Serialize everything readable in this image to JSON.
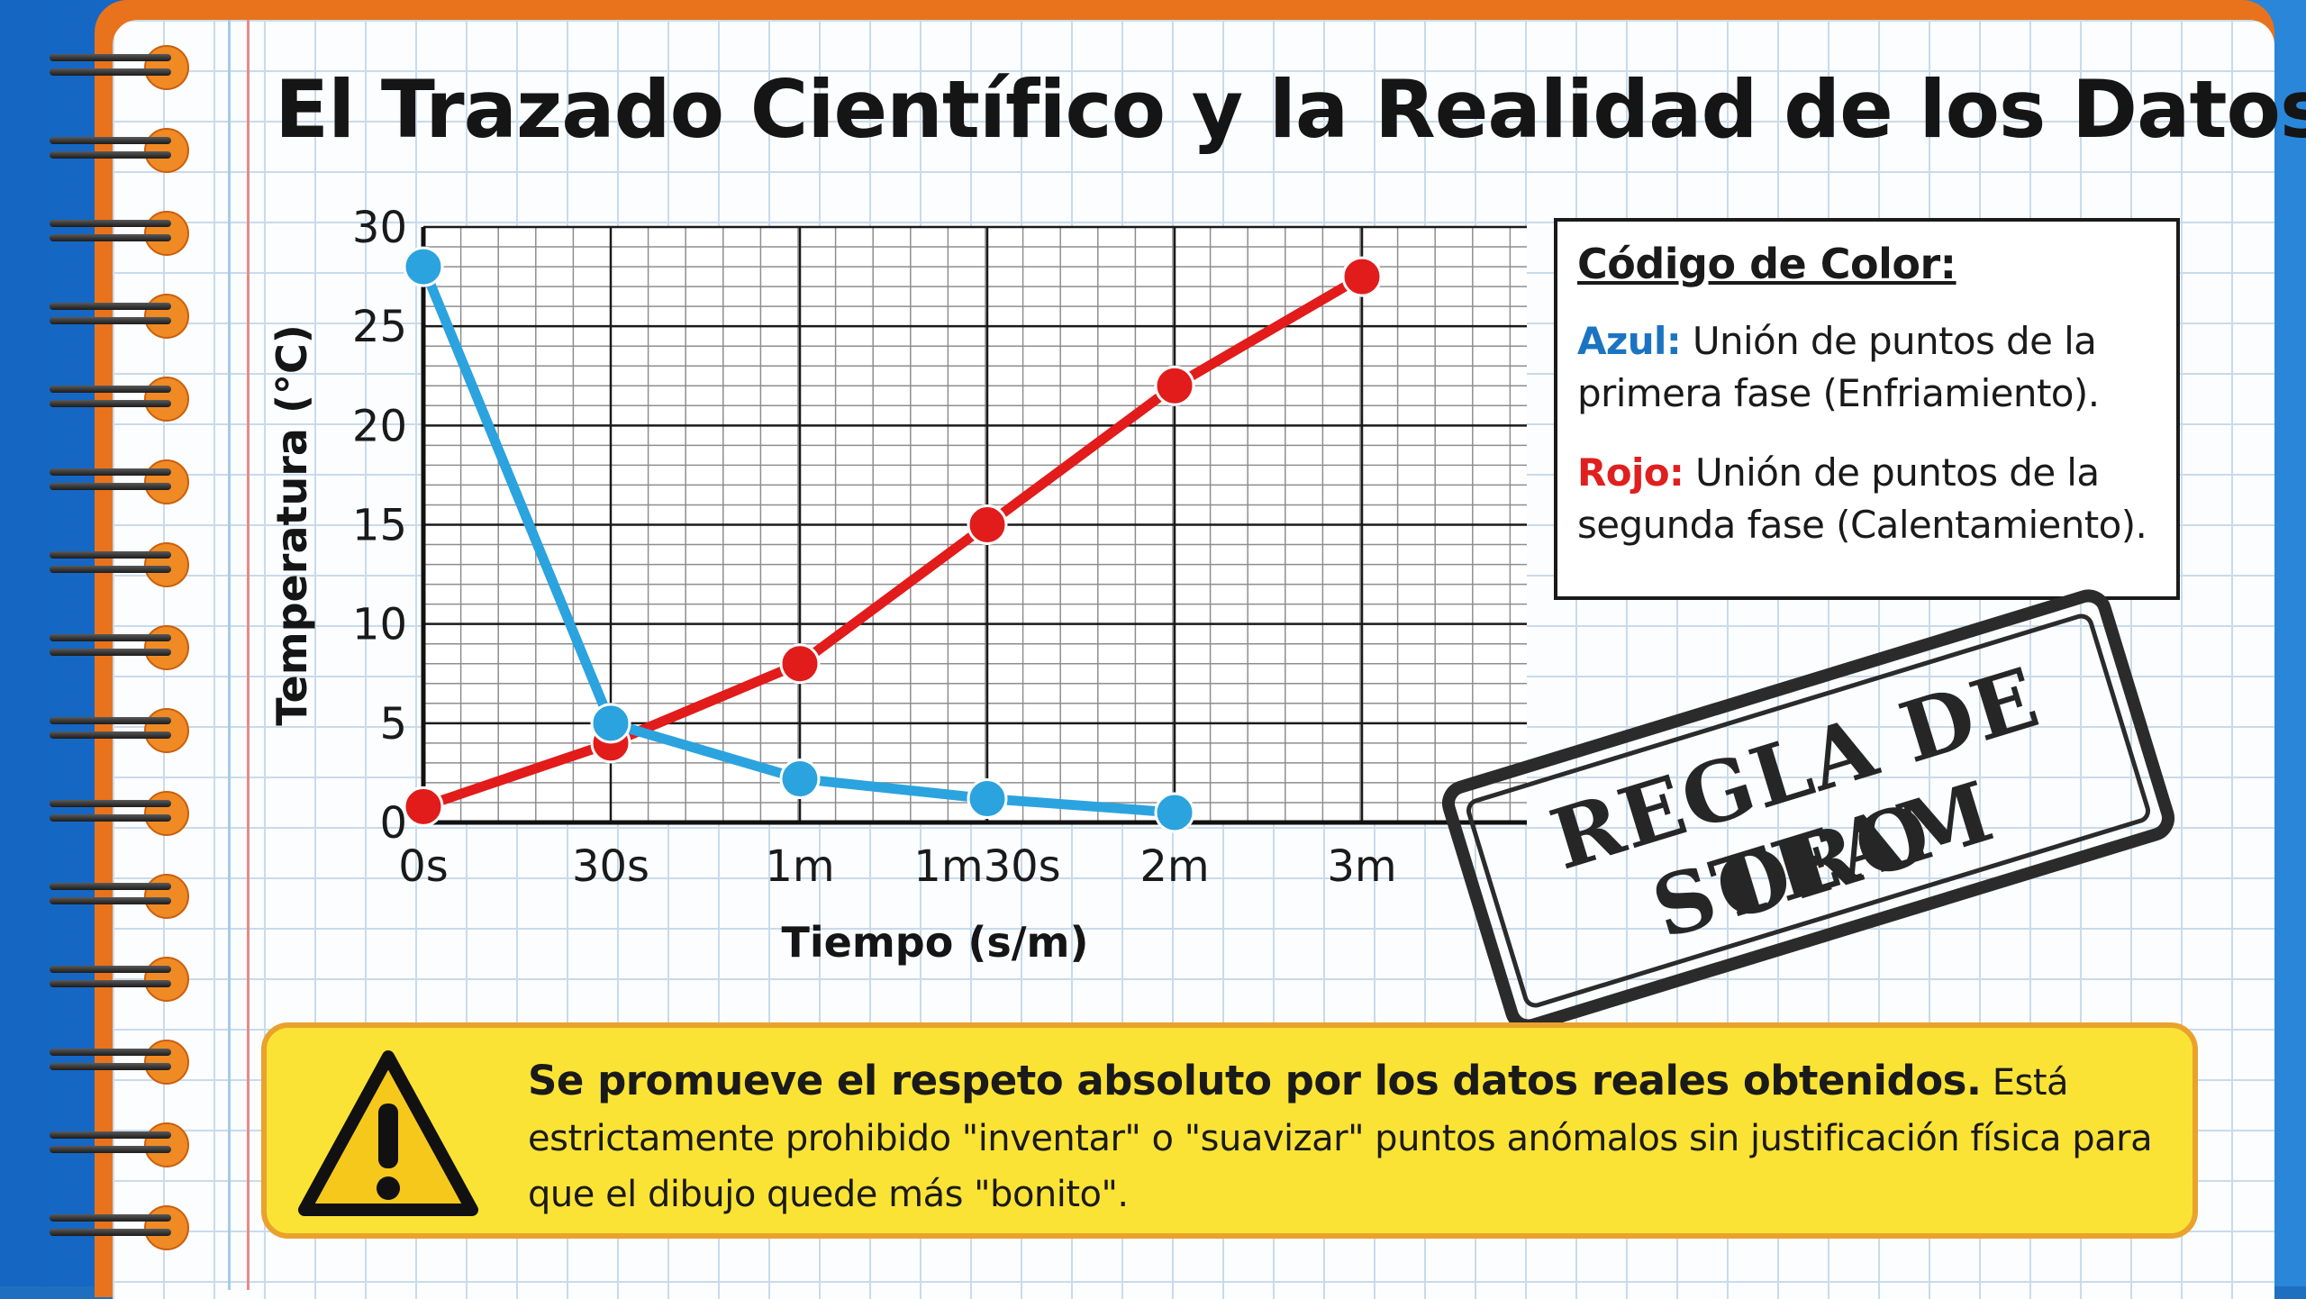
{
  "title": "El Trazado Científico y la Realidad de los Datos.",
  "chart_data": {
    "type": "line",
    "categories": [
      "0s",
      "30s",
      "1m",
      "1m30s",
      "2m",
      "3m"
    ],
    "xlabel": "Tiempo (s/m)",
    "ylabel": "Temperatura (°C)",
    "ylim": [
      0,
      30
    ],
    "yticks": [
      0,
      5,
      10,
      15,
      20,
      25,
      30
    ],
    "grid": true,
    "series": [
      {
        "name": "Azul",
        "color": "#2ba3de",
        "values": [
          28,
          5,
          2.2,
          1.2,
          0.5,
          null
        ]
      },
      {
        "name": "Rojo",
        "color": "#e21b1b",
        "values": [
          0.8,
          4,
          8,
          15,
          22,
          27.5
        ]
      }
    ]
  },
  "legend": {
    "title": "Código de Color:",
    "entries": [
      {
        "key": "Azul:",
        "text": "Unión de puntos de la primera fase (Enfriamiento).",
        "color": "#1b74c2"
      },
      {
        "key": "Rojo:",
        "text": "Unión de puntos de la segunda fase (Calentamiento).",
        "color": "#e01f1f"
      }
    ]
  },
  "stamp": {
    "line1": "REGLA DE ORO",
    "line2": "STEAM"
  },
  "warning": {
    "bold": "Se promueve el respeto absoluto por los datos reales obtenidos.",
    "text": " Está estrictamente prohibido \"inventar\" o \"suavizar\" puntos anómalos sin justificación física para que el dibujo quede más \"bonito\"."
  },
  "colors": {
    "notebook_cover": "#1f6fc0",
    "frame": "#e8731c",
    "warning_fill": "#fbe335",
    "warning_border": "#e9a22c"
  }
}
